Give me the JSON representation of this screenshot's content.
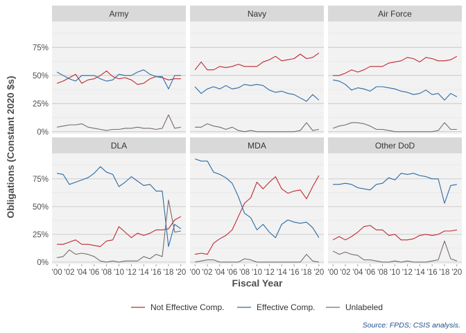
{
  "chart_data": {
    "type": "line",
    "ylabel": "Obligations (Constant 2020 $s)",
    "xlabel": "Fiscal Year",
    "ylim": [
      -0.02,
      0.98
    ],
    "y_ticks": [
      0,
      0.25,
      0.5,
      0.75
    ],
    "y_tick_labels": [
      "0%",
      "25%",
      "50%",
      "75%"
    ],
    "x_ticks": [
      2000,
      2002,
      2004,
      2006,
      2008,
      2010,
      2012,
      2014,
      2016,
      2018,
      2020
    ],
    "x_tick_labels": [
      "'00",
      "'02",
      "'04",
      "'06",
      "'08",
      "'10",
      "'12",
      "'14",
      "'16",
      "'18",
      "'20"
    ],
    "x": [
      2000,
      2001,
      2002,
      2003,
      2004,
      2005,
      2006,
      2007,
      2008,
      2009,
      2010,
      2011,
      2012,
      2013,
      2014,
      2015,
      2016,
      2017,
      2018,
      2019,
      2020
    ],
    "legend": [
      "Not Effective Comp.",
      "Effective Comp.",
      "Unlabeled"
    ],
    "colors": {
      "Not Effective Comp.": "#c0272d",
      "Effective Comp.": "#2b6aa3",
      "Unlabeled": "#7a6a6a",
      "panel_bg": "#f2f2f2",
      "strip_bg": "#d9d9d9",
      "grid": "#c8c8c8"
    },
    "legend_position": "bottom",
    "source": "Source: FPDS; CSIS analysis.",
    "panels": [
      {
        "title": "Army",
        "series": [
          {
            "name": "Not Effective Comp.",
            "values": [
              0.43,
              0.45,
              0.48,
              0.51,
              0.43,
              0.46,
              0.47,
              0.5,
              0.54,
              0.49,
              0.47,
              0.48,
              0.46,
              0.42,
              0.43,
              0.47,
              0.49,
              0.48,
              0.46,
              0.47,
              0.47
            ]
          },
          {
            "name": "Effective Comp.",
            "values": [
              0.53,
              0.5,
              0.47,
              0.45,
              0.5,
              0.5,
              0.5,
              0.47,
              0.45,
              0.46,
              0.51,
              0.5,
              0.5,
              0.53,
              0.55,
              0.51,
              0.49,
              0.49,
              0.38,
              0.5,
              0.5
            ]
          },
          {
            "name": "Unlabeled",
            "values": [
              0.04,
              0.05,
              0.06,
              0.06,
              0.07,
              0.04,
              0.03,
              0.02,
              0.01,
              0.02,
              0.02,
              0.03,
              0.03,
              0.04,
              0.03,
              0.03,
              0.02,
              0.03,
              0.15,
              0.03,
              0.04
            ]
          }
        ]
      },
      {
        "title": "Navy",
        "series": [
          {
            "name": "Not Effective Comp.",
            "values": [
              0.55,
              0.62,
              0.55,
              0.55,
              0.58,
              0.57,
              0.58,
              0.6,
              0.58,
              0.58,
              0.58,
              0.62,
              0.64,
              0.67,
              0.63,
              0.64,
              0.65,
              0.69,
              0.65,
              0.66,
              0.7
            ]
          },
          {
            "name": "Effective Comp.",
            "values": [
              0.4,
              0.34,
              0.38,
              0.4,
              0.38,
              0.41,
              0.38,
              0.39,
              0.42,
              0.41,
              0.42,
              0.41,
              0.37,
              0.35,
              0.36,
              0.34,
              0.33,
              0.3,
              0.27,
              0.33,
              0.28
            ]
          },
          {
            "name": "Unlabeled",
            "values": [
              0.04,
              0.04,
              0.07,
              0.05,
              0.04,
              0.02,
              0.04,
              0.01,
              0.0,
              0.01,
              0.0,
              0.0,
              0.0,
              0.0,
              0.0,
              0.0,
              0.0,
              0.01,
              0.08,
              0.01,
              0.02
            ]
          }
        ]
      },
      {
        "title": "Air Force",
        "series": [
          {
            "name": "Not Effective Comp.",
            "values": [
              0.5,
              0.5,
              0.52,
              0.55,
              0.53,
              0.55,
              0.58,
              0.58,
              0.58,
              0.61,
              0.62,
              0.63,
              0.66,
              0.65,
              0.62,
              0.66,
              0.65,
              0.63,
              0.63,
              0.64,
              0.67
            ]
          },
          {
            "name": "Effective Comp.",
            "values": [
              0.46,
              0.45,
              0.42,
              0.37,
              0.39,
              0.38,
              0.36,
              0.4,
              0.4,
              0.39,
              0.38,
              0.36,
              0.35,
              0.33,
              0.34,
              0.37,
              0.33,
              0.34,
              0.28,
              0.34,
              0.31
            ]
          },
          {
            "name": "Unlabeled",
            "values": [
              0.03,
              0.05,
              0.06,
              0.08,
              0.08,
              0.07,
              0.05,
              0.02,
              0.02,
              0.01,
              0.0,
              0.0,
              0.0,
              0.0,
              0.0,
              0.0,
              0.0,
              0.01,
              0.08,
              0.02,
              0.02
            ]
          }
        ]
      },
      {
        "title": "DLA",
        "series": [
          {
            "name": "Not Effective Comp.",
            "values": [
              0.16,
              0.16,
              0.18,
              0.2,
              0.16,
              0.16,
              0.15,
              0.14,
              0.19,
              0.2,
              0.32,
              0.27,
              0.22,
              0.26,
              0.24,
              0.26,
              0.29,
              0.29,
              0.3,
              0.38,
              0.41
            ]
          },
          {
            "name": "Effective Comp.",
            "values": [
              0.8,
              0.79,
              0.7,
              0.72,
              0.74,
              0.76,
              0.8,
              0.86,
              0.81,
              0.79,
              0.68,
              0.72,
              0.77,
              0.73,
              0.69,
              0.7,
              0.64,
              0.64,
              0.14,
              0.34,
              0.3
            ]
          },
          {
            "name": "Unlabeled",
            "values": [
              0.04,
              0.05,
              0.11,
              0.07,
              0.08,
              0.07,
              0.05,
              0.01,
              0.0,
              0.01,
              0.0,
              0.01,
              0.01,
              0.01,
              0.05,
              0.03,
              0.07,
              0.05,
              0.56,
              0.27,
              0.28
            ]
          }
        ]
      },
      {
        "title": "MDA",
        "series": [
          {
            "name": "Not Effective Comp.",
            "values": [
              0.07,
              0.08,
              0.07,
              0.17,
              0.21,
              0.24,
              0.29,
              0.41,
              0.53,
              0.58,
              0.72,
              0.66,
              0.72,
              0.77,
              0.66,
              0.62,
              0.64,
              0.65,
              0.57,
              0.68,
              0.78
            ]
          },
          {
            "name": "Effective Comp.",
            "values": [
              0.93,
              0.91,
              0.91,
              0.81,
              0.79,
              0.76,
              0.71,
              0.59,
              0.44,
              0.4,
              0.29,
              0.34,
              0.27,
              0.22,
              0.34,
              0.38,
              0.36,
              0.35,
              0.36,
              0.31,
              0.22
            ]
          },
          {
            "name": "Unlabeled",
            "values": [
              0.0,
              0.01,
              0.02,
              0.02,
              0.0,
              0.0,
              0.0,
              0.0,
              0.03,
              0.02,
              0.0,
              0.0,
              0.0,
              0.0,
              0.0,
              0.0,
              0.0,
              0.0,
              0.07,
              0.01,
              0.0
            ]
          }
        ]
      },
      {
        "title": "Other DoD",
        "series": [
          {
            "name": "Not Effective Comp.",
            "values": [
              0.2,
              0.23,
              0.2,
              0.23,
              0.27,
              0.32,
              0.33,
              0.29,
              0.29,
              0.24,
              0.25,
              0.2,
              0.2,
              0.21,
              0.24,
              0.25,
              0.24,
              0.25,
              0.28,
              0.28,
              0.29
            ]
          },
          {
            "name": "Effective Comp.",
            "values": [
              0.7,
              0.7,
              0.71,
              0.7,
              0.67,
              0.66,
              0.65,
              0.7,
              0.71,
              0.76,
              0.74,
              0.8,
              0.79,
              0.8,
              0.78,
              0.77,
              0.75,
              0.75,
              0.53,
              0.69,
              0.7
            ]
          },
          {
            "name": "Unlabeled",
            "values": [
              0.1,
              0.07,
              0.09,
              0.07,
              0.06,
              0.02,
              0.02,
              0.01,
              0.0,
              0.0,
              0.01,
              0.0,
              0.01,
              0.0,
              0.0,
              0.0,
              0.01,
              0.02,
              0.19,
              0.03,
              0.01
            ]
          }
        ]
      }
    ]
  }
}
